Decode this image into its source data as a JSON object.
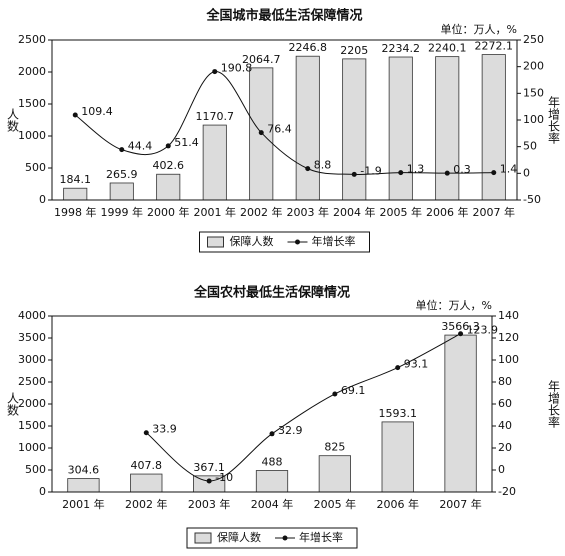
{
  "chart_data": [
    {
      "type": "bar-line",
      "title": "全国城市最低生活保障情况",
      "unit": "单位：万人，%",
      "y_label": "人数",
      "y2_label": "年增长率",
      "categories": [
        "1998 年",
        "1999 年",
        "2000 年",
        "2001 年",
        "2002 年",
        "2003 年",
        "2004 年",
        "2005 年",
        "2006 年",
        "2007 年"
      ],
      "series": [
        {
          "name": "保障人数",
          "type": "bar",
          "color": "#dcdcdc",
          "values": [
            184.1,
            265.9,
            402.6,
            1170.7,
            2064.7,
            2246.8,
            2205,
            2234.2,
            2240.1,
            2272.1
          ]
        },
        {
          "name": "年增长率",
          "type": "line",
          "axis": "y2",
          "color": "#111111",
          "values": [
            109.4,
            44.4,
            51.4,
            190.8,
            76.4,
            8.8,
            -1.9,
            1.3,
            0.3,
            1.4
          ]
        }
      ],
      "ylim": [
        0,
        2500
      ],
      "yticks": [
        0,
        500,
        1000,
        1500,
        2000,
        2500
      ],
      "y2lim": [
        -50,
        250
      ],
      "y2ticks": [
        -50,
        0,
        50,
        100,
        150,
        200,
        250
      ],
      "legend": "bottom"
    },
    {
      "type": "bar-line",
      "title": "全国农村最低生活保障情况",
      "unit": "单位：万人，%",
      "y_label": "人数",
      "y2_label": "年增长率",
      "categories": [
        "2001 年",
        "2002 年",
        "2003 年",
        "2004 年",
        "2005 年",
        "2006 年",
        "2007 年"
      ],
      "series": [
        {
          "name": "保障人数",
          "type": "bar",
          "color": "#dcdcdc",
          "values": [
            304.6,
            407.8,
            367.1,
            488,
            825,
            1593.1,
            3566.3
          ]
        },
        {
          "name": "年增长率",
          "type": "line",
          "axis": "y2",
          "color": "#111111",
          "values": [
            null,
            33.9,
            -10,
            32.9,
            69.1,
            93.1,
            123.9
          ]
        }
      ],
      "ylim": [
        0,
        4000
      ],
      "yticks": [
        0,
        500,
        1000,
        1500,
        2000,
        2500,
        3000,
        3500,
        4000
      ],
      "y2lim": [
        -20,
        140
      ],
      "y2ticks": [
        -20,
        0,
        20,
        40,
        60,
        80,
        100,
        120,
        140
      ],
      "legend": "bottom"
    }
  ]
}
